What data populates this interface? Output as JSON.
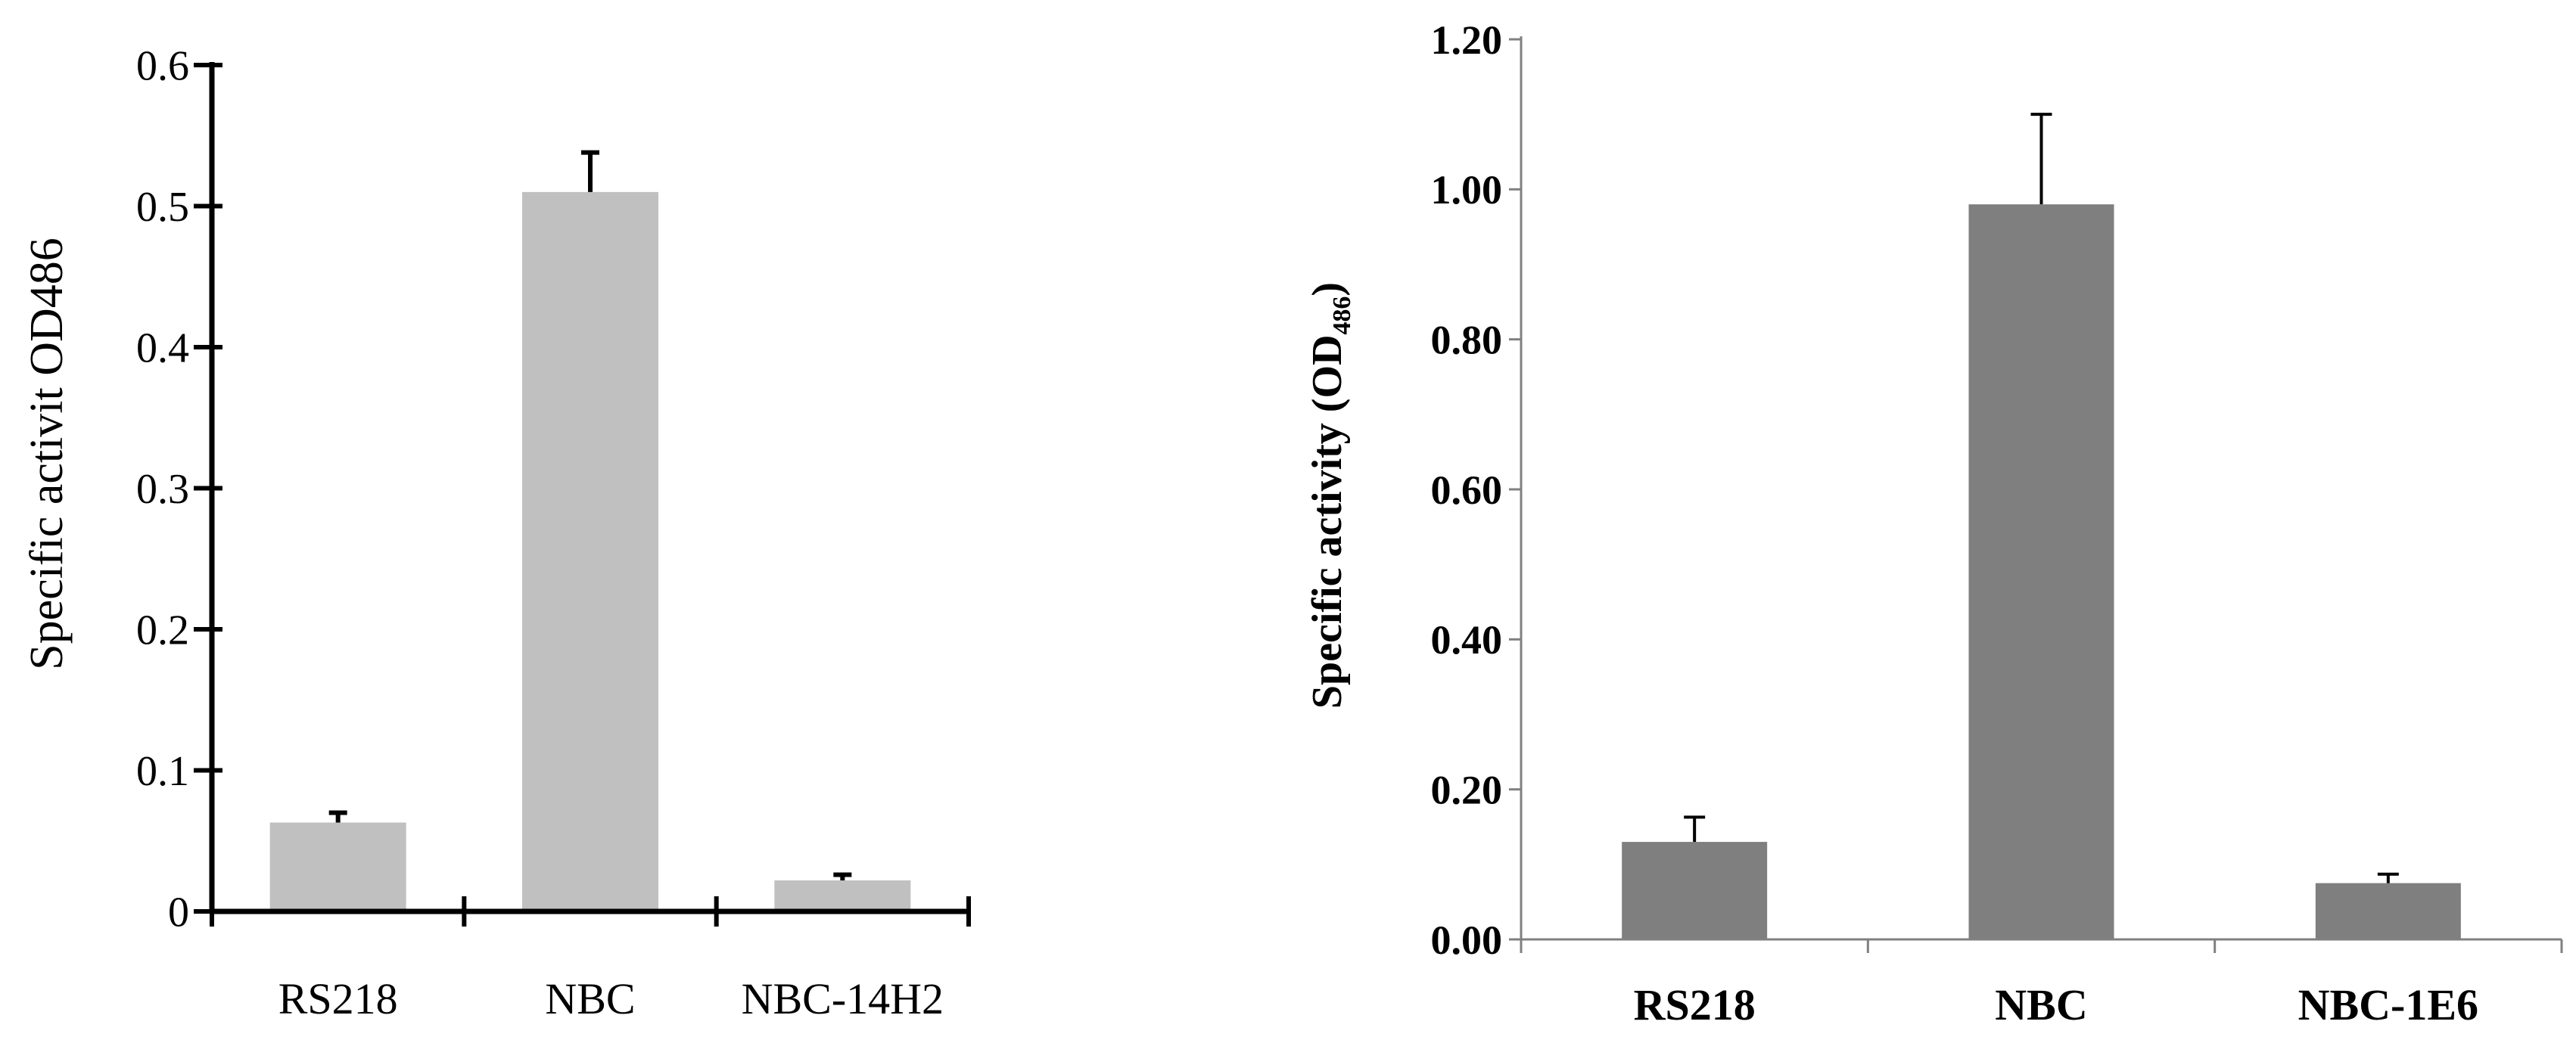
{
  "chart_data": [
    {
      "type": "bar",
      "categories": [
        "RS218",
        "NBC",
        "NBC-14H2"
      ],
      "values": [
        0.063,
        0.51,
        0.022
      ],
      "errors": [
        0.007,
        0.028,
        0.004
      ],
      "title": "",
      "xlabel": "",
      "ylabel": "Specific activit OD486",
      "ylim": [
        0,
        0.6
      ],
      "yticks": [
        "0",
        "0.1",
        "0.2",
        "0.3",
        "0.4",
        "0.5",
        "0.6"
      ],
      "bar_color": "#c0c0c0",
      "grid": false,
      "bold_labels": false
    },
    {
      "type": "bar",
      "categories": [
        "RS218",
        "NBC",
        "NBC-1E6"
      ],
      "values": [
        0.13,
        0.98,
        0.075
      ],
      "errors": [
        0.033,
        0.12,
        0.012
      ],
      "title": "",
      "xlabel": "",
      "ylabel": "Specific activity (OD486)",
      "ylabel_main": "Specific activity (OD",
      "ylabel_sub": "486",
      "ylabel_end": ")",
      "ylim": [
        0,
        1.2
      ],
      "yticks": [
        "0.00",
        "0.20",
        "0.40",
        "0.60",
        "0.80",
        "1.00",
        "1.20"
      ],
      "bar_color": "#7f7f7f",
      "grid": false,
      "bold_labels": true
    }
  ]
}
